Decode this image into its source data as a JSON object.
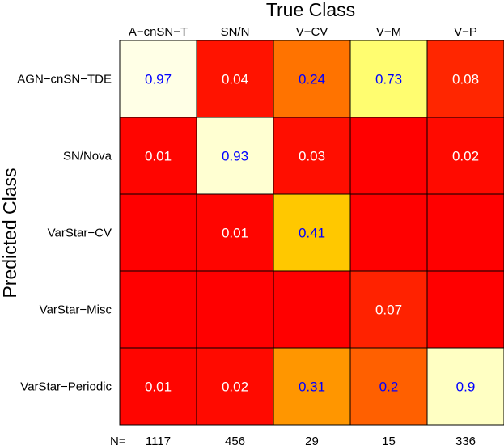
{
  "chart_data": {
    "type": "heatmap",
    "title": "True Class",
    "ylabel": "Predicted Class",
    "x_categories": [
      "A−cnSN−T",
      "SN/N",
      "V−CV",
      "V−M",
      "V−P"
    ],
    "y_categories": [
      "AGN−cnSN−TDE",
      "SN/Nova",
      "VarStar−CV",
      "VarStar−Misc",
      "VarStar−Periodic"
    ],
    "values": [
      [
        0.97,
        0.04,
        0.24,
        0.73,
        0.08
      ],
      [
        0.01,
        0.93,
        0.03,
        0.0,
        0.02
      ],
      [
        0.0,
        0.01,
        0.41,
        0.0,
        0.0
      ],
      [
        0.0,
        0.0,
        0.0,
        0.07,
        0.0
      ],
      [
        0.01,
        0.02,
        0.31,
        0.2,
        0.9
      ]
    ],
    "cell_labels": [
      [
        "0.97",
        "0.04",
        "0.24",
        "0.73",
        "0.08"
      ],
      [
        "0.01",
        "0.93",
        "0.03",
        "",
        "0.02"
      ],
      [
        "",
        "0.01",
        "0.41",
        "",
        ""
      ],
      [
        "",
        "",
        "",
        "0.07",
        ""
      ],
      [
        "0.01",
        "0.02",
        "0.31",
        "0.2",
        "0.9"
      ]
    ],
    "counts_label": "N=",
    "counts": [
      "1117",
      "456",
      "29",
      "15",
      "336"
    ],
    "colors": {
      "high_label": "#0000ff",
      "low_label": "#ffffff",
      "grid": "#000000"
    }
  }
}
